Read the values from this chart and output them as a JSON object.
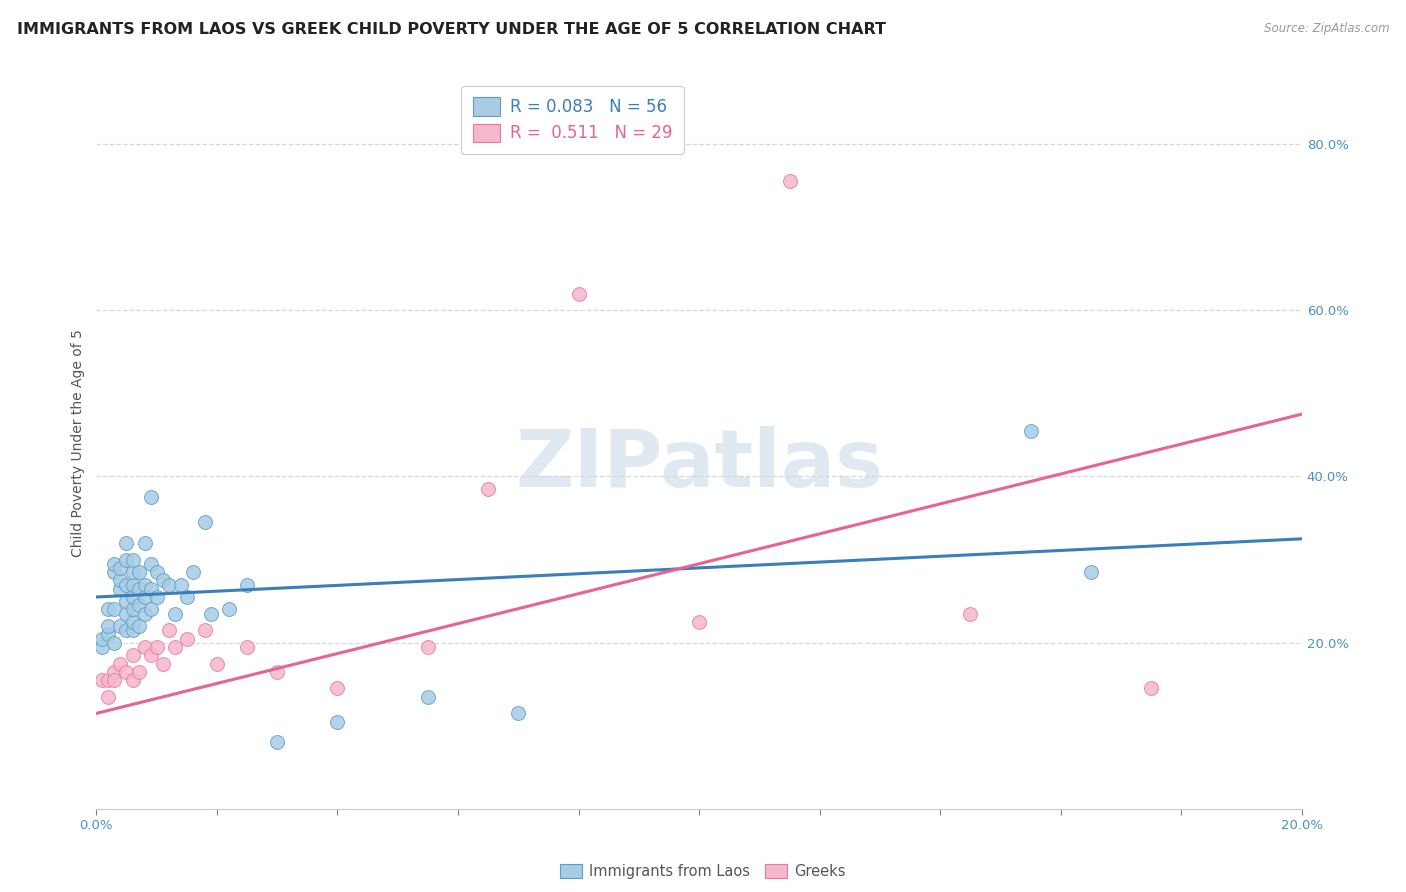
{
  "title": "IMMIGRANTS FROM LAOS VS GREEK CHILD POVERTY UNDER THE AGE OF 5 CORRELATION CHART",
  "source": "Source: ZipAtlas.com",
  "ylabel": "Child Poverty Under the Age of 5",
  "r_laos": 0.083,
  "n_laos": 56,
  "r_greeks": 0.511,
  "n_greeks": 29,
  "color_laos": "#a8cce4",
  "color_greeks": "#f5b8cb",
  "edge_laos": "#5b9dc9",
  "edge_greeks": "#e8799e",
  "line_color_laos": "#3a7eba",
  "line_color_greeks": "#e8638f",
  "xlim": [
    0.0,
    0.2
  ],
  "ylim": [
    0.0,
    0.88
  ],
  "blue_line_x0": 0.0,
  "blue_line_y0": 0.255,
  "blue_line_x1": 0.2,
  "blue_line_y1": 0.325,
  "pink_line_x0": 0.0,
  "pink_line_y0": 0.115,
  "pink_line_x1": 0.2,
  "pink_line_y1": 0.475,
  "laos_x": [
    0.001,
    0.001,
    0.002,
    0.002,
    0.002,
    0.003,
    0.003,
    0.003,
    0.003,
    0.004,
    0.004,
    0.004,
    0.004,
    0.005,
    0.005,
    0.005,
    0.005,
    0.005,
    0.005,
    0.006,
    0.006,
    0.006,
    0.006,
    0.006,
    0.006,
    0.006,
    0.007,
    0.007,
    0.007,
    0.007,
    0.008,
    0.008,
    0.008,
    0.008,
    0.009,
    0.009,
    0.009,
    0.009,
    0.01,
    0.01,
    0.011,
    0.012,
    0.013,
    0.014,
    0.015,
    0.016,
    0.018,
    0.019,
    0.022,
    0.025,
    0.03,
    0.04,
    0.055,
    0.07,
    0.155,
    0.165
  ],
  "laos_y": [
    0.195,
    0.205,
    0.21,
    0.22,
    0.24,
    0.2,
    0.24,
    0.285,
    0.295,
    0.22,
    0.265,
    0.275,
    0.29,
    0.215,
    0.235,
    0.25,
    0.27,
    0.3,
    0.32,
    0.215,
    0.225,
    0.24,
    0.255,
    0.27,
    0.285,
    0.3,
    0.22,
    0.245,
    0.265,
    0.285,
    0.235,
    0.255,
    0.27,
    0.32,
    0.24,
    0.265,
    0.295,
    0.375,
    0.255,
    0.285,
    0.275,
    0.27,
    0.235,
    0.27,
    0.255,
    0.285,
    0.345,
    0.235,
    0.24,
    0.27,
    0.08,
    0.105,
    0.135,
    0.115,
    0.455,
    0.285
  ],
  "greeks_x": [
    0.001,
    0.002,
    0.002,
    0.003,
    0.003,
    0.004,
    0.005,
    0.006,
    0.006,
    0.007,
    0.008,
    0.009,
    0.01,
    0.011,
    0.012,
    0.013,
    0.015,
    0.018,
    0.02,
    0.025,
    0.03,
    0.04,
    0.055,
    0.065,
    0.08,
    0.1,
    0.115,
    0.145,
    0.175
  ],
  "greeks_y": [
    0.155,
    0.135,
    0.155,
    0.165,
    0.155,
    0.175,
    0.165,
    0.155,
    0.185,
    0.165,
    0.195,
    0.185,
    0.195,
    0.175,
    0.215,
    0.195,
    0.205,
    0.215,
    0.175,
    0.195,
    0.165,
    0.145,
    0.195,
    0.385,
    0.62,
    0.225,
    0.755,
    0.235,
    0.145
  ],
  "watermark": "ZIPatlas",
  "background_color": "#ffffff",
  "grid_color": "#d8d8d8",
  "title_fontsize": 11.5,
  "axis_label_fontsize": 10,
  "tick_fontsize": 9.5,
  "legend_fontsize": 12
}
